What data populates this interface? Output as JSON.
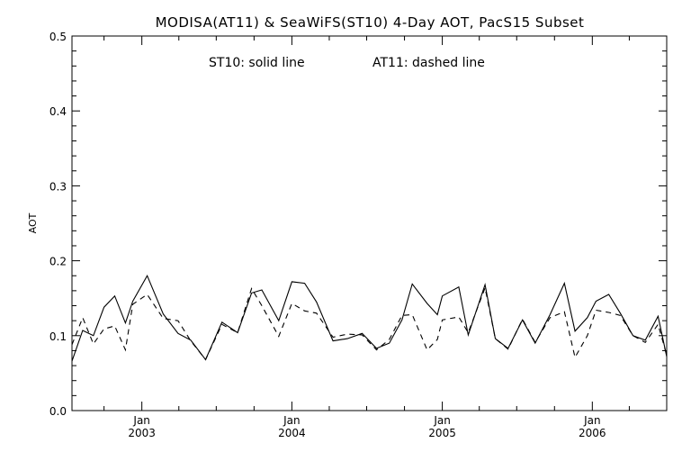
{
  "chart_data": {
    "type": "line",
    "title": "MODISA(AT11) & SeaWiFS(ST10) 4-Day AOT, PacS15 Subset",
    "annotation_solid": "ST10: solid line",
    "annotation_dashed": "AT11: dashed line",
    "ylabel": "AOT",
    "xlabel": "",
    "ylim": [
      0.0,
      0.5
    ],
    "yticks": [
      "0.0",
      "0.1",
      "0.2",
      "0.3",
      "0.4",
      "0.5"
    ],
    "xlim": [
      "2002-07-15",
      "2006-07-01"
    ],
    "xticks": [
      {
        "month": "Jan",
        "year": "2003",
        "date": "2003-01-01"
      },
      {
        "month": "Jan",
        "year": "2004",
        "date": "2004-01-01"
      },
      {
        "month": "Jan",
        "year": "2005",
        "date": "2005-01-01"
      },
      {
        "month": "Jan",
        "year": "2006",
        "date": "2006-01-01"
      }
    ],
    "grid": false,
    "series": [
      {
        "name": "ST10",
        "style": "solid",
        "points": [
          [
            "2002-07-15",
            0.066
          ],
          [
            "2002-08-10",
            0.107
          ],
          [
            "2002-09-05",
            0.1
          ],
          [
            "2002-10-01",
            0.138
          ],
          [
            "2002-10-27",
            0.153
          ],
          [
            "2002-11-22",
            0.117
          ],
          [
            "2002-12-10",
            0.146
          ],
          [
            "2003-01-14",
            0.18
          ],
          [
            "2003-02-22",
            0.129
          ],
          [
            "2003-03-30",
            0.103
          ],
          [
            "2003-04-30",
            0.094
          ],
          [
            "2003-06-05",
            0.068
          ],
          [
            "2003-07-15",
            0.118
          ],
          [
            "2003-08-22",
            0.104
          ],
          [
            "2003-09-25",
            0.157
          ],
          [
            "2003-10-20",
            0.161
          ],
          [
            "2003-11-30",
            0.12
          ],
          [
            "2004-01-01",
            0.172
          ],
          [
            "2004-02-01",
            0.17
          ],
          [
            "2004-03-01",
            0.145
          ],
          [
            "2004-04-10",
            0.093
          ],
          [
            "2004-05-15",
            0.096
          ],
          [
            "2004-06-20",
            0.103
          ],
          [
            "2004-07-25",
            0.083
          ],
          [
            "2004-08-25",
            0.09
          ],
          [
            "2004-09-25",
            0.121
          ],
          [
            "2004-10-20",
            0.169
          ],
          [
            "2004-11-25",
            0.143
          ],
          [
            "2004-12-20",
            0.128
          ],
          [
            "2005-01-01",
            0.153
          ],
          [
            "2005-02-10",
            0.165
          ],
          [
            "2005-03-05",
            0.101
          ],
          [
            "2005-04-15",
            0.168
          ],
          [
            "2005-05-10",
            0.096
          ],
          [
            "2005-06-10",
            0.083
          ],
          [
            "2005-07-15",
            0.121
          ],
          [
            "2005-08-15",
            0.09
          ],
          [
            "2005-09-20",
            0.128
          ],
          [
            "2005-10-25",
            0.17
          ],
          [
            "2005-11-20",
            0.106
          ],
          [
            "2005-12-20",
            0.124
          ],
          [
            "2006-01-10",
            0.146
          ],
          [
            "2006-02-10",
            0.155
          ],
          [
            "2006-03-10",
            0.13
          ],
          [
            "2006-04-10",
            0.1
          ],
          [
            "2006-05-10",
            0.094
          ],
          [
            "2006-06-10",
            0.126
          ],
          [
            "2006-07-01",
            0.072
          ]
        ]
      },
      {
        "name": "AT11",
        "style": "dashed",
        "points": [
          [
            "2002-07-15",
            0.088
          ],
          [
            "2002-08-10",
            0.124
          ],
          [
            "2002-09-05",
            0.089
          ],
          [
            "2002-10-01",
            0.109
          ],
          [
            "2002-10-27",
            0.113
          ],
          [
            "2002-11-22",
            0.081
          ],
          [
            "2002-12-10",
            0.142
          ],
          [
            "2003-01-14",
            0.155
          ],
          [
            "2003-02-22",
            0.123
          ],
          [
            "2003-03-30",
            0.12
          ],
          [
            "2003-04-30",
            0.093
          ],
          [
            "2003-06-05",
            0.068
          ],
          [
            "2003-07-15",
            0.115
          ],
          [
            "2003-08-22",
            0.104
          ],
          [
            "2003-09-25",
            0.163
          ],
          [
            "2003-10-20",
            0.14
          ],
          [
            "2003-11-30",
            0.099
          ],
          [
            "2004-01-01",
            0.143
          ],
          [
            "2004-02-01",
            0.133
          ],
          [
            "2004-03-01",
            0.13
          ],
          [
            "2004-04-10",
            0.098
          ],
          [
            "2004-05-15",
            0.102
          ],
          [
            "2004-06-20",
            0.101
          ],
          [
            "2004-07-25",
            0.081
          ],
          [
            "2004-08-25",
            0.095
          ],
          [
            "2004-09-25",
            0.127
          ],
          [
            "2004-10-20",
            0.128
          ],
          [
            "2004-11-25",
            0.081
          ],
          [
            "2004-12-20",
            0.095
          ],
          [
            "2005-01-01",
            0.121
          ],
          [
            "2005-02-10",
            0.125
          ],
          [
            "2005-03-05",
            0.104
          ],
          [
            "2005-04-15",
            0.164
          ],
          [
            "2005-05-10",
            0.096
          ],
          [
            "2005-06-10",
            0.082
          ],
          [
            "2005-07-15",
            0.122
          ],
          [
            "2005-08-15",
            0.091
          ],
          [
            "2005-09-20",
            0.124
          ],
          [
            "2005-10-25",
            0.132
          ],
          [
            "2005-11-20",
            0.071
          ],
          [
            "2005-12-20",
            0.1
          ],
          [
            "2006-01-10",
            0.134
          ],
          [
            "2006-02-10",
            0.131
          ],
          [
            "2006-03-10",
            0.127
          ],
          [
            "2006-04-10",
            0.1
          ],
          [
            "2006-05-10",
            0.091
          ],
          [
            "2006-06-10",
            0.115
          ],
          [
            "2006-07-01",
            0.074
          ]
        ]
      }
    ]
  }
}
